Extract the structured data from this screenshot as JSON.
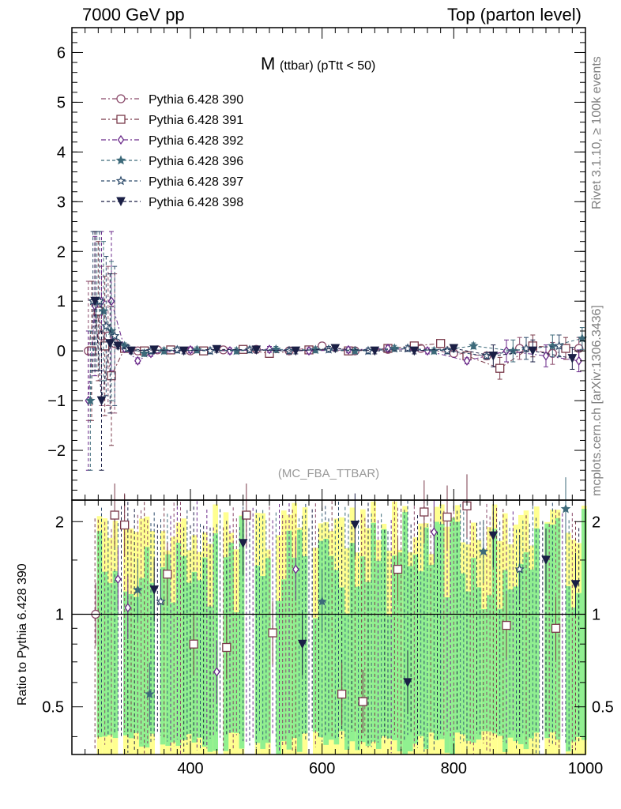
{
  "header": {
    "left": "7000 GeV pp",
    "right": "Top (parton level)"
  },
  "side_labels": {
    "rivet": "Rivet 3.1.10, ≥ 100k events",
    "mcplots": "mcplots.cern.ch [arXiv:1306.3436]"
  },
  "chart_data": [
    {
      "type": "scatter",
      "title_main": "M",
      "title_sub": "(ttbar) (pTtt < 50)",
      "watermark": "(MC_FBA_TTBAR)",
      "ylim": [
        -3,
        6.5
      ],
      "xlim": [
        220,
        1000
      ],
      "yticks": [
        "−2",
        "−1",
        "0",
        "1",
        "2",
        "3",
        "4",
        "5",
        "6"
      ],
      "ytick_values": [
        -2,
        -1,
        0,
        1,
        2,
        3,
        4,
        5,
        6
      ],
      "legend_position": "top-left",
      "series": [
        {
          "name": "Pythia 6.428 390",
          "color": "#8a4a6a",
          "marker": "circle-open",
          "dash": "6,3,2,3",
          "x": [
            245,
            255,
            265,
            275,
            285,
            300,
            320,
            350,
            400,
            450,
            500,
            550,
            600,
            650,
            700,
            750,
            800,
            850,
            900,
            950,
            990
          ],
          "y": [
            0,
            1,
            0.3,
            0.3,
            0.15,
            0.05,
            0.0,
            0.02,
            0.0,
            0.02,
            0.03,
            0.0,
            0.1,
            0.0,
            0.03,
            0.05,
            -0.05,
            -0.1,
            0.05,
            -0.05,
            0.05
          ]
        },
        {
          "name": "Pythia 6.428 391",
          "color": "#7a3a4a",
          "marker": "square-open",
          "dash": "6,3,2,3",
          "x": [
            250,
            260,
            270,
            280,
            300,
            330,
            370,
            420,
            480,
            520,
            580,
            640,
            700,
            740,
            780,
            820,
            870,
            920,
            970
          ],
          "y": [
            0,
            0.8,
            0.1,
            -0.5,
            0.05,
            0.0,
            0.02,
            0.0,
            0.03,
            -0.05,
            0.02,
            0.0,
            0.05,
            0.1,
            0.15,
            -0.1,
            -0.35,
            0.1,
            0.05
          ]
        },
        {
          "name": "Pythia 6.428 392",
          "color": "#6a2a8a",
          "marker": "diamond-open",
          "dash": "6,3,2,3",
          "x": [
            245,
            255,
            265,
            280,
            300,
            320,
            340,
            400,
            460,
            520,
            580,
            640,
            700,
            760,
            820,
            880,
            940,
            990
          ],
          "y": [
            -1.0,
            0.9,
            1.0,
            1.0,
            0.05,
            -0.2,
            -0.05,
            0.02,
            0.0,
            0.03,
            0.0,
            0.02,
            0.05,
            0.0,
            -0.2,
            0.0,
            -0.1,
            -0.2
          ]
        },
        {
          "name": "Pythia 6.428 396",
          "color": "#3d6a7a",
          "marker": "star-filled",
          "dash": "4,3",
          "x": [
            248,
            258,
            268,
            280,
            300,
            330,
            360,
            410,
            470,
            530,
            590,
            650,
            710,
            770,
            830,
            890,
            950,
            995
          ],
          "y": [
            -1.0,
            1.0,
            0.8,
            0.4,
            0.1,
            -0.05,
            0.0,
            0.02,
            0.0,
            0.03,
            0.02,
            0.0,
            0.05,
            0.0,
            0.1,
            0.0,
            0.1,
            0.25
          ]
        },
        {
          "name": "Pythia 6.428 397",
          "color": "#2c4a6a",
          "marker": "star-open",
          "dash": "4,3",
          "x": [
            252,
            262,
            272,
            285,
            305,
            340,
            380,
            430,
            490,
            550,
            610,
            670,
            730,
            790,
            850,
            910,
            960
          ],
          "y": [
            1.0,
            1.0,
            0.5,
            0.3,
            0.05,
            0.0,
            0.02,
            0.0,
            0.02,
            0.0,
            0.03,
            0.0,
            0.05,
            0.0,
            -0.1,
            0.05,
            0.1
          ]
        },
        {
          "name": "Pythia 6.428 398",
          "color": "#1a1f45",
          "marker": "triangle-down-filled",
          "dash": "4,3",
          "x": [
            255,
            265,
            278,
            290,
            310,
            345,
            390,
            440,
            500,
            560,
            620,
            680,
            740,
            800,
            860,
            920,
            980
          ],
          "y": [
            1.0,
            -1.0,
            0.15,
            0.1,
            0.0,
            0.02,
            0.0,
            0.03,
            0.02,
            0.0,
            0.05,
            0.0,
            0.0,
            0.05,
            -0.1,
            0.0,
            -0.15
          ]
        }
      ]
    },
    {
      "type": "scatter",
      "ylabel": "Ratio to Pythia 6.428 390",
      "ylim": [
        0.35,
        2.35
      ],
      "xlim": [
        220,
        1000
      ],
      "xticks": [
        "400",
        "600",
        "800",
        "1000"
      ],
      "xtick_values": [
        400,
        600,
        800,
        1000
      ],
      "yticks": [
        "0.5",
        "1",
        "2"
      ],
      "ytick_values": [
        0.5,
        1,
        2
      ],
      "reference_line": 1,
      "band_colors": {
        "green": "#90f090",
        "yellow": "#ffff90"
      },
      "markers": [
        {
          "x": 256,
          "y": 1.0,
          "s": 0
        },
        {
          "x": 285,
          "y": 2.1,
          "s": 1
        },
        {
          "x": 300,
          "y": 1.95,
          "s": 1
        },
        {
          "x": 290,
          "y": 1.3,
          "s": 2
        },
        {
          "x": 305,
          "y": 1.05,
          "s": 2
        },
        {
          "x": 320,
          "y": 1.2,
          "s": 3
        },
        {
          "x": 338,
          "y": 0.55,
          "s": 3
        },
        {
          "x": 365,
          "y": 1.35,
          "s": 1
        },
        {
          "x": 405,
          "y": 0.8,
          "s": 1
        },
        {
          "x": 355,
          "y": 1.1,
          "s": 4
        },
        {
          "x": 440,
          "y": 0.65,
          "s": 2
        },
        {
          "x": 455,
          "y": 0.78,
          "s": 1
        },
        {
          "x": 485,
          "y": 2.1,
          "s": 1
        },
        {
          "x": 525,
          "y": 0.87,
          "s": 1
        },
        {
          "x": 560,
          "y": 1.4,
          "s": 2
        },
        {
          "x": 600,
          "y": 1.1,
          "s": 3
        },
        {
          "x": 630,
          "y": 0.55,
          "s": 1
        },
        {
          "x": 662,
          "y": 0.52,
          "s": 1
        },
        {
          "x": 715,
          "y": 1.4,
          "s": 1
        },
        {
          "x": 755,
          "y": 2.15,
          "s": 1
        },
        {
          "x": 790,
          "y": 2.07,
          "s": 1
        },
        {
          "x": 820,
          "y": 2.25,
          "s": 1
        },
        {
          "x": 845,
          "y": 1.6,
          "s": 3
        },
        {
          "x": 880,
          "y": 0.92,
          "s": 1
        },
        {
          "x": 955,
          "y": 0.9,
          "s": 1
        },
        {
          "x": 770,
          "y": 1.85,
          "s": 2
        },
        {
          "x": 900,
          "y": 1.4,
          "s": 4
        },
        {
          "x": 970,
          "y": 2.2,
          "s": 3
        },
        {
          "x": 985,
          "y": 1.25,
          "s": 5
        },
        {
          "x": 345,
          "y": 1.2,
          "s": 5
        },
        {
          "x": 480,
          "y": 1.7,
          "s": 5
        },
        {
          "x": 570,
          "y": 0.8,
          "s": 5
        },
        {
          "x": 650,
          "y": 1.95,
          "s": 5
        },
        {
          "x": 730,
          "y": 0.6,
          "s": 5
        },
        {
          "x": 860,
          "y": 1.8,
          "s": 5
        },
        {
          "x": 940,
          "y": 1.5,
          "s": 5
        }
      ]
    }
  ]
}
